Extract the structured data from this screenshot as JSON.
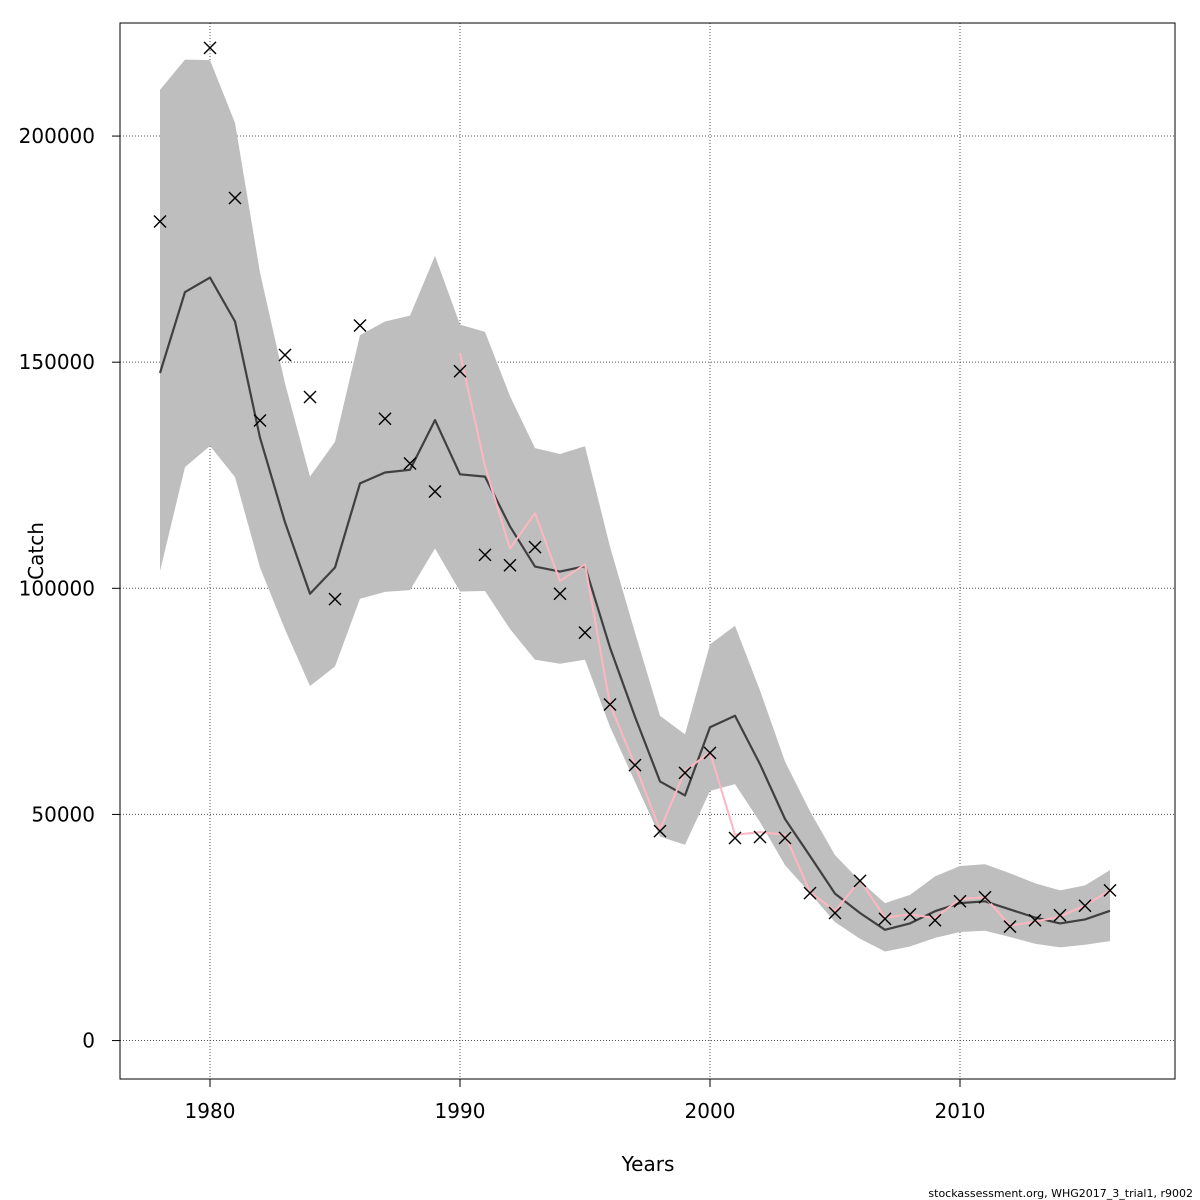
{
  "chart_data": {
    "type": "line",
    "xlabel": "Years",
    "ylabel": "Catch",
    "xlim": [
      1976.4,
      2018.6
    ],
    "ylim": [
      -8500,
      225000
    ],
    "x_ticks": [
      1980,
      1990,
      2000,
      2010
    ],
    "y_ticks": [
      0,
      50000,
      100000,
      150000,
      200000
    ],
    "grid": true,
    "footer": "stockassessment.org, WHG2017_3_trial1, r9002",
    "colors": {
      "band": "#bebebe",
      "estimate": "#404040",
      "pink": "#ffb6c1",
      "observed": "#000000"
    },
    "series": [
      {
        "type": "band",
        "x": [
          1978,
          1979,
          1980,
          1981,
          1982,
          1983,
          1984,
          1985,
          1986,
          1987,
          1988,
          1989,
          1990,
          1991,
          1992,
          1993,
          1994,
          1995,
          1996,
          1997,
          1998,
          1999,
          2000,
          2001,
          2002,
          2003,
          2004,
          2005,
          2006,
          2007,
          2008,
          2009,
          2010,
          2011,
          2012,
          2013,
          2014,
          2015,
          2016
        ],
        "lower": [
          103800,
          126800,
          131500,
          124600,
          104600,
          90900,
          78400,
          82700,
          97700,
          99200,
          99600,
          108800,
          99300,
          99400,
          91000,
          84200,
          83300,
          84200,
          69400,
          57200,
          45100,
          43300,
          55200,
          56700,
          48300,
          38800,
          32600,
          26200,
          22500,
          19700,
          20800,
          22700,
          24000,
          24300,
          22900,
          21400,
          20600,
          21200,
          22000
        ],
        "upper": [
          210200,
          216900,
          216800,
          202900,
          169800,
          145300,
          124700,
          132400,
          156000,
          159000,
          160300,
          173500,
          158300,
          156700,
          142500,
          131000,
          129700,
          131400,
          109200,
          90200,
          71800,
          67700,
          87600,
          91700,
          77400,
          61700,
          50700,
          41000,
          35300,
          30400,
          32200,
          36300,
          38600,
          39000,
          37000,
          34800,
          33200,
          34300,
          37700
        ]
      },
      {
        "type": "line",
        "x": [
          1978,
          1979,
          1980,
          1981,
          1982,
          1983,
          1984,
          1985,
          1986,
          1987,
          1988,
          1989,
          1990,
          1991,
          1992,
          1993,
          1994,
          1995,
          1996,
          1997,
          1998,
          1999,
          2000,
          2001,
          2002,
          2003,
          2004,
          2005,
          2006,
          2007,
          2008,
          2009,
          2010,
          2011,
          2012,
          2013,
          2014,
          2015,
          2016
        ],
        "values": [
          147600,
          165500,
          168700,
          159000,
          133300,
          114600,
          98800,
          104600,
          123200,
          125600,
          126200,
          137200,
          125200,
          124700,
          113700,
          104800,
          103700,
          104900,
          86900,
          71600,
          57300,
          54200,
          69300,
          71800,
          61100,
          49000,
          40800,
          32500,
          28200,
          24500,
          25900,
          28600,
          30400,
          30800,
          29000,
          27200,
          25900,
          26800,
          28700
        ]
      },
      {
        "type": "line",
        "x": [
          1990,
          1991,
          1992,
          1993,
          1994,
          1995,
          1996,
          1997,
          1998,
          1999,
          2000,
          2001,
          2002,
          2003,
          2004,
          2005,
          2006,
          2007,
          2008,
          2009,
          2010,
          2011,
          2012,
          2013,
          2014,
          2015,
          2016
        ],
        "values": [
          152000,
          127000,
          108800,
          116600,
          101600,
          105300,
          74300,
          60900,
          46600,
          59700,
          63700,
          45500,
          46100,
          45500,
          32900,
          28600,
          35400,
          27200,
          27900,
          27100,
          31300,
          31700,
          25400,
          26300,
          27400,
          29900,
          33200
        ]
      },
      {
        "type": "scatter",
        "marker": "x",
        "x": [
          1978,
          1980,
          1981,
          1982,
          1983,
          1984,
          1985,
          1986,
          1987,
          1988,
          1989,
          1990,
          1991,
          1992,
          1993,
          1994,
          1995,
          1996,
          1997,
          1998,
          1999,
          2000,
          2001,
          2002,
          2003,
          2004,
          2005,
          2006,
          2007,
          2008,
          2009,
          2010,
          2011,
          2012,
          2013,
          2014,
          2015,
          2016
        ],
        "values": [
          181100,
          219500,
          186300,
          137100,
          151600,
          142300,
          97600,
          158100,
          137500,
          127600,
          121400,
          148000,
          107400,
          105100,
          109100,
          98800,
          90200,
          74300,
          60900,
          46300,
          59200,
          63600,
          44800,
          45000,
          44800,
          32600,
          28200,
          35300,
          26900,
          27900,
          26600,
          30800,
          31700,
          25200,
          26600,
          27700,
          29800,
          33200
        ]
      }
    ]
  }
}
